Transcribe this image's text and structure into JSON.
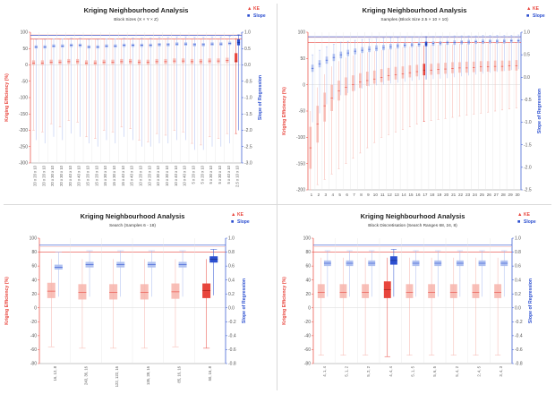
{
  "colors": {
    "ke": "#e8453c",
    "ke_light": "#f7b4ac",
    "slope": "#2c4fd0",
    "slope_light": "#a9bbf0",
    "axis": "#888888"
  },
  "chart_data": [
    {
      "type": "box",
      "title": "Kriging Neighbourhood Analysis",
      "subtitle": "Block Sizes (X × Y × Z)",
      "ylabel": "Kriging Efficiency (%)",
      "y2label": "Slope of Regression",
      "ylim": [
        -300,
        100
      ],
      "y2lim": [
        -3.0,
        1.0
      ],
      "yticks": [
        100,
        50,
        0,
        -50,
        -100,
        -150,
        -200,
        -250,
        -300
      ],
      "y2ticks": [
        1.0,
        0.5,
        0.0,
        -0.5,
        -1.0,
        -1.5,
        -2.0,
        -2.5,
        -3.0
      ],
      "legend": [
        {
          "marker": "▲",
          "label": "KE"
        },
        {
          "marker": "■",
          "label": "Slope"
        }
      ],
      "legend_position": "top-right",
      "ref_lines": {
        "ke": 80,
        "ke2": 92,
        "slope": 0.9
      },
      "highlight_index": 23,
      "categories": [
        "20 x 20 x 10",
        "20 x 20 x 10",
        "20 x 30 x 10",
        "20 x 30 x 10",
        "20 x 40 x 10",
        "20 x 40 x 10",
        "15 x 20 x 10",
        "15 x 20 x 10",
        "15 x 30 x 10",
        "15 x 30 x 10",
        "15 x 40 x 10",
        "15 x 40 x 10",
        "10 x 20 x 10",
        "10 x 20 x 10",
        "10 x 30 x 10",
        "10 x 30 x 10",
        "10 x 40 x 10",
        "10 x 40 x 10",
        "5 x 20 x 10",
        "5 x 20 x 10",
        "5 x 30 x 10",
        "5 x 30 x 10",
        "5 x 40 x 10",
        "2.5 x 10 x 10"
      ],
      "series": [
        {
          "name": "KE",
          "axis": "left",
          "median": [
            6,
            6,
            8,
            8,
            10,
            10,
            6,
            6,
            8,
            8,
            10,
            10,
            8,
            8,
            10,
            10,
            12,
            12,
            10,
            10,
            12,
            12,
            14,
            12
          ],
          "q1": [
            0,
            0,
            2,
            2,
            3,
            3,
            0,
            0,
            2,
            2,
            3,
            3,
            1,
            1,
            3,
            3,
            5,
            5,
            3,
            3,
            5,
            5,
            6,
            8
          ],
          "q3": [
            14,
            14,
            16,
            16,
            18,
            18,
            14,
            14,
            16,
            16,
            18,
            18,
            16,
            16,
            18,
            18,
            20,
            20,
            18,
            18,
            20,
            20,
            22,
            36
          ],
          "min": [
            -200,
            -205,
            -180,
            -190,
            -170,
            -175,
            -220,
            -225,
            -200,
            -205,
            -190,
            -195,
            -230,
            -235,
            -210,
            -215,
            -200,
            -205,
            -240,
            -245,
            -220,
            -225,
            -210,
            -210
          ],
          "max": [
            78,
            78,
            78,
            78,
            78,
            78,
            78,
            78,
            78,
            78,
            78,
            78,
            78,
            78,
            78,
            78,
            78,
            78,
            78,
            78,
            78,
            78,
            78,
            82
          ]
        },
        {
          "name": "Slope",
          "axis": "right",
          "median": [
            0.55,
            0.55,
            0.58,
            0.58,
            0.6,
            0.6,
            0.55,
            0.55,
            0.58,
            0.58,
            0.6,
            0.6,
            0.6,
            0.6,
            0.62,
            0.62,
            0.64,
            0.64,
            0.62,
            0.62,
            0.64,
            0.64,
            0.66,
            0.68
          ],
          "q1": [
            0.5,
            0.5,
            0.53,
            0.53,
            0.55,
            0.55,
            0.5,
            0.5,
            0.53,
            0.53,
            0.55,
            0.55,
            0.55,
            0.55,
            0.57,
            0.57,
            0.59,
            0.59,
            0.57,
            0.57,
            0.59,
            0.59,
            0.61,
            0.6
          ],
          "q3": [
            0.6,
            0.6,
            0.63,
            0.63,
            0.65,
            0.65,
            0.6,
            0.6,
            0.63,
            0.63,
            0.65,
            0.65,
            0.65,
            0.65,
            0.67,
            0.67,
            0.69,
            0.69,
            0.67,
            0.67,
            0.69,
            0.69,
            0.71,
            0.78
          ],
          "min": [
            -2.3,
            -2.4,
            -2.2,
            -2.3,
            -2.1,
            -2.2,
            -2.4,
            -2.5,
            -2.3,
            -2.4,
            -2.2,
            -2.3,
            -2.5,
            -2.5,
            -2.4,
            -2.4,
            -2.3,
            -2.3,
            -2.6,
            -2.6,
            -2.5,
            -2.5,
            -2.4,
            -2.0
          ],
          "max": [
            0.78,
            0.78,
            0.8,
            0.8,
            0.82,
            0.82,
            0.78,
            0.78,
            0.8,
            0.8,
            0.82,
            0.82,
            0.82,
            0.82,
            0.84,
            0.84,
            0.86,
            0.86,
            0.84,
            0.84,
            0.86,
            0.86,
            0.88,
            0.92
          ]
        }
      ]
    },
    {
      "type": "box",
      "title": "Kriging Neighbourhood Analysis",
      "subtitle": "Samples (Block Size 2.5 × 10 × 10)",
      "ylabel": "Kriging Efficiency (%)",
      "y2label": "Slope of Regression",
      "ylim": [
        -200,
        100
      ],
      "y2lim": [
        -2.5,
        1.0
      ],
      "yticks": [
        100,
        50,
        0,
        -50,
        -100,
        -150,
        -200
      ],
      "y2ticks": [
        1.0,
        0.5,
        0.0,
        -0.5,
        -1.0,
        -1.5,
        -2.0,
        -2.5
      ],
      "legend": [
        {
          "marker": "▲",
          "label": "KE"
        },
        {
          "marker": "■",
          "label": "Slope"
        }
      ],
      "legend_position": "top-right",
      "ref_lines": {
        "ke": 80,
        "ke2": 90,
        "slope": 0.9
      },
      "highlight_index": 16,
      "categories": [
        "1",
        "2",
        "3",
        "4",
        "5",
        "6",
        "7",
        "8",
        "9",
        "10",
        "11",
        "12",
        "13",
        "14",
        "15",
        "16",
        "17",
        "18",
        "19",
        "20",
        "21",
        "22",
        "23",
        "24",
        "25",
        "26",
        "27",
        "28",
        "29",
        "30"
      ],
      "series": [
        {
          "name": "KE",
          "axis": "left",
          "median": [
            -120,
            -75,
            -40,
            -25,
            -12,
            -5,
            0,
            5,
            8,
            11,
            14,
            17,
            19,
            21,
            23,
            25,
            28,
            28,
            29,
            30,
            31,
            32,
            32,
            33,
            34,
            34,
            35,
            35,
            36,
            36
          ],
          "q1": [
            -160,
            -110,
            -70,
            -50,
            -30,
            -20,
            -12,
            -6,
            -2,
            2,
            5,
            8,
            10,
            12,
            14,
            16,
            18,
            19,
            20,
            21,
            22,
            23,
            23,
            24,
            25,
            25,
            26,
            26,
            27,
            27
          ],
          "q3": [
            -80,
            -40,
            -15,
            0,
            8,
            14,
            18,
            22,
            25,
            27,
            30,
            32,
            34,
            35,
            37,
            38,
            40,
            40,
            41,
            42,
            43,
            43,
            44,
            44,
            45,
            45,
            46,
            46,
            46,
            47
          ],
          "min": [
            -200,
            -190,
            -180,
            -170,
            -160,
            -150,
            -140,
            -130,
            -120,
            -110,
            -100,
            -95,
            -90,
            -85,
            -80,
            -75,
            -70,
            -68,
            -66,
            -64,
            -62,
            -60,
            -58,
            -56,
            -54,
            -52,
            -50,
            -48,
            -46,
            -44
          ],
          "max": [
            -50,
            -5,
            20,
            35,
            45,
            52,
            56,
            60,
            62,
            64,
            66,
            68,
            70,
            72,
            73,
            74,
            75,
            76,
            76,
            77,
            77,
            78,
            78,
            78,
            79,
            79,
            79,
            80,
            80,
            80
          ]
        },
        {
          "name": "Slope",
          "axis": "right",
          "median": [
            0.2,
            0.3,
            0.38,
            0.44,
            0.5,
            0.54,
            0.58,
            0.6,
            0.62,
            0.64,
            0.66,
            0.68,
            0.7,
            0.71,
            0.72,
            0.73,
            0.74,
            0.75,
            0.76,
            0.77,
            0.77,
            0.78,
            0.78,
            0.79,
            0.79,
            0.8,
            0.8,
            0.8,
            0.81,
            0.81
          ],
          "q1": [
            0.12,
            0.22,
            0.3,
            0.36,
            0.42,
            0.47,
            0.51,
            0.54,
            0.56,
            0.58,
            0.6,
            0.62,
            0.64,
            0.66,
            0.67,
            0.68,
            0.69,
            0.7,
            0.71,
            0.72,
            0.72,
            0.73,
            0.73,
            0.74,
            0.74,
            0.75,
            0.75,
            0.75,
            0.76,
            0.76
          ],
          "q3": [
            0.28,
            0.38,
            0.46,
            0.52,
            0.57,
            0.61,
            0.64,
            0.67,
            0.69,
            0.71,
            0.72,
            0.74,
            0.75,
            0.76,
            0.77,
            0.78,
            0.79,
            0.8,
            0.8,
            0.81,
            0.82,
            0.82,
            0.83,
            0.83,
            0.84,
            0.84,
            0.84,
            0.85,
            0.85,
            0.85
          ],
          "min": [
            -1.0,
            -0.8,
            -0.6,
            -0.5,
            -0.4,
            -0.35,
            -0.3,
            -0.25,
            -0.2,
            -0.18,
            -0.16,
            -0.14,
            -0.12,
            -0.1,
            -0.08,
            -0.06,
            -0.05,
            -0.04,
            -0.03,
            -0.02,
            0.0,
            0.02,
            0.04,
            0.06,
            0.08,
            0.1,
            0.12,
            0.14,
            0.16,
            0.18
          ],
          "max": [
            0.5,
            0.6,
            0.68,
            0.73,
            0.78,
            0.8,
            0.82,
            0.84,
            0.85,
            0.86,
            0.87,
            0.88,
            0.88,
            0.89,
            0.89,
            0.9,
            0.9,
            0.91,
            0.91,
            0.91,
            0.92,
            0.92,
            0.92,
            0.92,
            0.93,
            0.93,
            0.93,
            0.93,
            0.93,
            0.94
          ]
        }
      ]
    },
    {
      "type": "box",
      "title": "Kriging Neighbourhood Analysis",
      "subtitle": "Search (Samples 6 - 18)",
      "ylabel": "Kriging Efficiency (%)",
      "y2label": "Slope of Regression",
      "ylim": [
        -80,
        100
      ],
      "y2lim": [
        -0.8,
        1.0
      ],
      "yticks": [
        100,
        80,
        60,
        40,
        20,
        0,
        -20,
        -40,
        -60,
        -80
      ],
      "y2ticks": [
        1.0,
        0.8,
        0.6,
        0.4,
        0.2,
        0.0,
        -0.2,
        -0.4,
        -0.6,
        -0.8
      ],
      "legend": [
        {
          "marker": "▲",
          "label": "KE"
        },
        {
          "marker": "■",
          "label": "Slope"
        }
      ],
      "legend_position": "top-right",
      "ref_lines": {
        "ke": 80,
        "ke2": 88,
        "slope": 0.9
      },
      "highlight_index": 5,
      "categories": [
        "16, 12, 8",
        "240, 36, 16",
        "122, 122, 16",
        "135, 28, 16",
        "85, 16, 16",
        "50, 16, 8"
      ],
      "series": [
        {
          "name": "KE",
          "axis": "left",
          "median": [
            24,
            22,
            22,
            22,
            23,
            25
          ],
          "q1": [
            14,
            12,
            12,
            12,
            13,
            14
          ],
          "q3": [
            36,
            34,
            34,
            34,
            35,
            35
          ],
          "min": [
            -56,
            -58,
            -58,
            -58,
            -56,
            -58
          ],
          "max": [
            70,
            70,
            70,
            70,
            70,
            70
          ]
        },
        {
          "name": "Slope",
          "axis": "right",
          "median": [
            0.58,
            0.62,
            0.62,
            0.62,
            0.62,
            0.7
          ],
          "q1": [
            0.55,
            0.58,
            0.58,
            0.58,
            0.58,
            0.65
          ],
          "q3": [
            0.62,
            0.66,
            0.66,
            0.66,
            0.66,
            0.74
          ],
          "min": [
            0.16,
            0.16,
            0.16,
            0.16,
            0.16,
            0.18
          ],
          "max": [
            0.8,
            0.82,
            0.82,
            0.82,
            0.82,
            0.84
          ]
        }
      ]
    },
    {
      "type": "box",
      "title": "Kriging Neighbourhood Analysis",
      "subtitle": "Block Discretisation (Search Ranges 68, 24, 8)",
      "ylabel": "Kriging Efficiency (%)",
      "y2label": "Slope of Regression",
      "ylim": [
        -80,
        100
      ],
      "y2lim": [
        -0.8,
        1.0
      ],
      "yticks": [
        100,
        80,
        60,
        40,
        20,
        0,
        -20,
        -40,
        -60,
        -80
      ],
      "y2ticks": [
        1.0,
        0.8,
        0.6,
        0.4,
        0.2,
        0.0,
        -0.2,
        -0.4,
        -0.6,
        -0.8
      ],
      "legend": [
        {
          "marker": "▲",
          "label": "KE"
        },
        {
          "marker": "■",
          "label": "Slope"
        }
      ],
      "legend_position": "top-right",
      "ref_lines": {
        "ke": 80,
        "ke2": 88,
        "slope": 0.9
      },
      "highlight_index": 3,
      "categories": [
        "4, 1, 4",
        "5, 1, 2",
        "5, 2, 2",
        "4, 4, 4",
        "5, 1, 5",
        "5, 6, 5",
        "5, 4, 2",
        "2, 4, 5",
        "3, 4, 3"
      ],
      "series": [
        {
          "name": "KE",
          "axis": "left",
          "median": [
            22,
            22,
            22,
            26,
            22,
            22,
            22,
            22,
            22
          ],
          "q1": [
            14,
            14,
            14,
            14,
            14,
            14,
            14,
            14,
            14
          ],
          "q3": [
            34,
            34,
            34,
            38,
            34,
            34,
            34,
            34,
            34
          ],
          "min": [
            -68,
            -68,
            -68,
            -70,
            -68,
            -68,
            -68,
            -68,
            -68
          ],
          "max": [
            72,
            72,
            72,
            72,
            72,
            72,
            72,
            72,
            72
          ]
        },
        {
          "name": "Slope",
          "axis": "right",
          "median": [
            0.64,
            0.64,
            0.64,
            0.68,
            0.64,
            0.64,
            0.64,
            0.64,
            0.64
          ],
          "q1": [
            0.6,
            0.6,
            0.6,
            0.62,
            0.6,
            0.6,
            0.6,
            0.6,
            0.6
          ],
          "q3": [
            0.68,
            0.68,
            0.68,
            0.74,
            0.68,
            0.68,
            0.68,
            0.68,
            0.68
          ],
          "min": [
            0.16,
            0.16,
            0.16,
            0.16,
            0.16,
            0.16,
            0.16,
            0.16,
            0.16
          ],
          "max": [
            0.82,
            0.82,
            0.82,
            0.84,
            0.82,
            0.82,
            0.82,
            0.82,
            0.82
          ]
        }
      ]
    }
  ]
}
